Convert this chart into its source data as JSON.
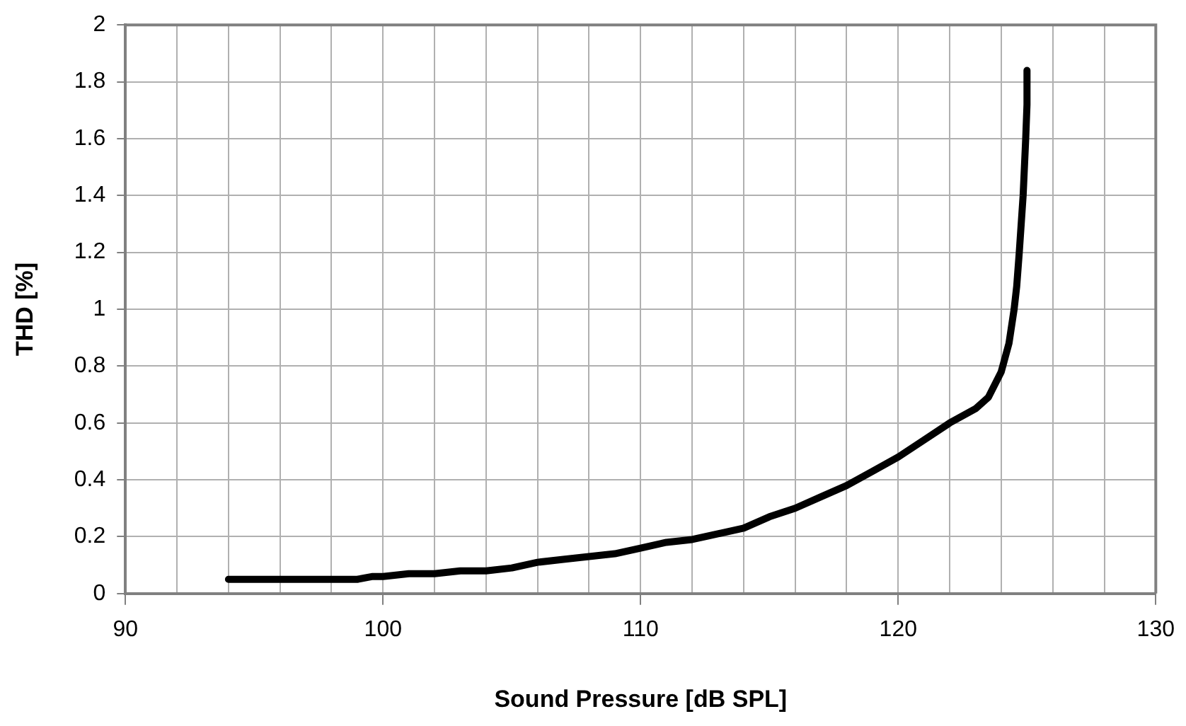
{
  "chart_data": {
    "type": "line",
    "xlabel": "Sound Pressure [dB SPL]",
    "ylabel": "THD [%]",
    "x": [
      94,
      99,
      99.6,
      100,
      101,
      102,
      103,
      104,
      105,
      106,
      107,
      108,
      109,
      110,
      111,
      112,
      113,
      114,
      115,
      116,
      117,
      118,
      119,
      120,
      121,
      122,
      123,
      123.5,
      124,
      124.3,
      124.5,
      124.6,
      124.7,
      124.85,
      124.95,
      125,
      125
    ],
    "series": [
      {
        "color": "#000000",
        "values": [
          0.05,
          0.05,
          0.06,
          0.06,
          0.07,
          0.07,
          0.08,
          0.08,
          0.09,
          0.11,
          0.12,
          0.13,
          0.14,
          0.16,
          0.18,
          0.19,
          0.21,
          0.23,
          0.27,
          0.3,
          0.34,
          0.38,
          0.43,
          0.48,
          0.54,
          0.6,
          0.65,
          0.69,
          0.78,
          0.88,
          1.0,
          1.08,
          1.2,
          1.4,
          1.6,
          1.72,
          1.84
        ]
      }
    ],
    "xlim": [
      90,
      130
    ],
    "xticks": [
      90,
      {
        "value": 92,
        "label": null
      },
      {
        "value": 94,
        "label": null
      },
      {
        "value": 96,
        "label": null
      },
      {
        "value": 98,
        "label": null
      },
      100,
      {
        "value": 102,
        "label": null
      },
      {
        "value": 104,
        "label": null
      },
      {
        "value": 106,
        "label": null
      },
      {
        "value": 108,
        "label": null
      },
      110,
      {
        "value": 112,
        "label": null
      },
      {
        "value": 114,
        "label": null
      },
      {
        "value": 116,
        "label": null
      },
      {
        "value": 118,
        "label": null
      },
      120,
      {
        "value": 122,
        "label": null
      },
      {
        "value": 124,
        "label": null
      },
      {
        "value": 126,
        "label": null
      },
      {
        "value": 128,
        "label": null
      },
      130
    ],
    "ylim": [
      0,
      2
    ],
    "yticks": [
      0,
      0.2,
      0.4,
      0.6,
      0.8,
      1,
      1.2,
      1.4,
      1.6,
      1.8,
      2
    ],
    "grid": true,
    "legend": false,
    "marker": "none",
    "line_style": "solid"
  }
}
